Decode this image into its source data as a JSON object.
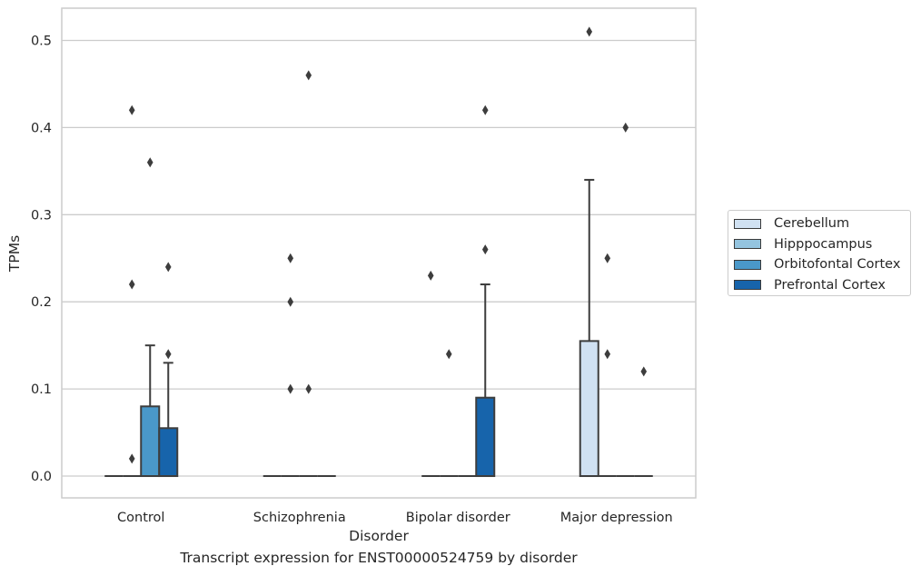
{
  "caption": "Transcript expression for ENST00000524759 by disorder",
  "chart_data": {
    "type": "box",
    "xlabel": "Disorder",
    "ylabel": "TPMs",
    "ylim": [
      -0.025,
      0.537
    ],
    "yticks": [
      0.0,
      0.1,
      0.2,
      0.3,
      0.4,
      0.5
    ],
    "ytick_labels": [
      "0.0",
      "0.1",
      "0.2",
      "0.3",
      "0.4",
      "0.5"
    ],
    "grid": "horizontal",
    "legend_position": "right",
    "categories": [
      "Control",
      "Schizophrenia",
      "Bipolar disorder",
      "Major depression"
    ],
    "series": [
      {
        "name": "Cerebellum",
        "color": "#d0e1f2",
        "boxes": [
          {
            "q1": 0,
            "median": 0,
            "q3": 0,
            "whislo": 0,
            "whishi": 0,
            "fliers": []
          },
          {
            "q1": 0,
            "median": 0,
            "q3": 0,
            "whislo": 0,
            "whishi": 0,
            "fliers": []
          },
          {
            "q1": 0,
            "median": 0,
            "q3": 0,
            "whislo": 0,
            "whishi": 0,
            "fliers": [
              0.23
            ]
          },
          {
            "q1": 0,
            "median": 0,
            "q3": 0.155,
            "whislo": 0,
            "whishi": 0.34,
            "fliers": [
              0.51
            ]
          }
        ]
      },
      {
        "name": "Hipppocampus",
        "color": "#94c4df",
        "boxes": [
          {
            "q1": 0,
            "median": 0,
            "q3": 0,
            "whislo": 0,
            "whishi": 0,
            "fliers": [
              0.02,
              0.22,
              0.42
            ]
          },
          {
            "q1": 0,
            "median": 0,
            "q3": 0,
            "whislo": 0,
            "whishi": 0,
            "fliers": [
              0.1,
              0.2,
              0.25
            ]
          },
          {
            "q1": 0,
            "median": 0,
            "q3": 0,
            "whislo": 0,
            "whishi": 0,
            "fliers": [
              0.14
            ]
          },
          {
            "q1": 0,
            "median": 0,
            "q3": 0,
            "whislo": 0,
            "whishi": 0,
            "fliers": [
              0.14,
              0.25
            ]
          }
        ]
      },
      {
        "name": "Orbitofontal Cortex",
        "color": "#4a98c9",
        "boxes": [
          {
            "q1": 0,
            "median": 0,
            "q3": 0.08,
            "whislo": 0,
            "whishi": 0.15,
            "fliers": [
              0.36
            ]
          },
          {
            "q1": 0,
            "median": 0,
            "q3": 0,
            "whislo": 0,
            "whishi": 0,
            "fliers": [
              0.1,
              0.46
            ]
          },
          {
            "q1": 0,
            "median": 0,
            "q3": 0,
            "whislo": 0,
            "whishi": 0,
            "fliers": []
          },
          {
            "q1": 0,
            "median": 0,
            "q3": 0,
            "whislo": 0,
            "whishi": 0,
            "fliers": [
              0.4
            ]
          }
        ]
      },
      {
        "name": "Prefrontal Cortex",
        "color": "#1764ab",
        "boxes": [
          {
            "q1": 0,
            "median": 0,
            "q3": 0.055,
            "whislo": 0,
            "whishi": 0.13,
            "fliers": [
              0.14,
              0.24
            ]
          },
          {
            "q1": 0,
            "median": 0,
            "q3": 0,
            "whislo": 0,
            "whishi": 0,
            "fliers": []
          },
          {
            "q1": 0,
            "median": 0,
            "q3": 0.09,
            "whislo": 0,
            "whishi": 0.22,
            "fliers": [
              0.26,
              0.42
            ]
          },
          {
            "q1": 0,
            "median": 0,
            "q3": 0,
            "whislo": 0,
            "whishi": 0,
            "fliers": [
              0.12
            ]
          }
        ]
      }
    ]
  }
}
